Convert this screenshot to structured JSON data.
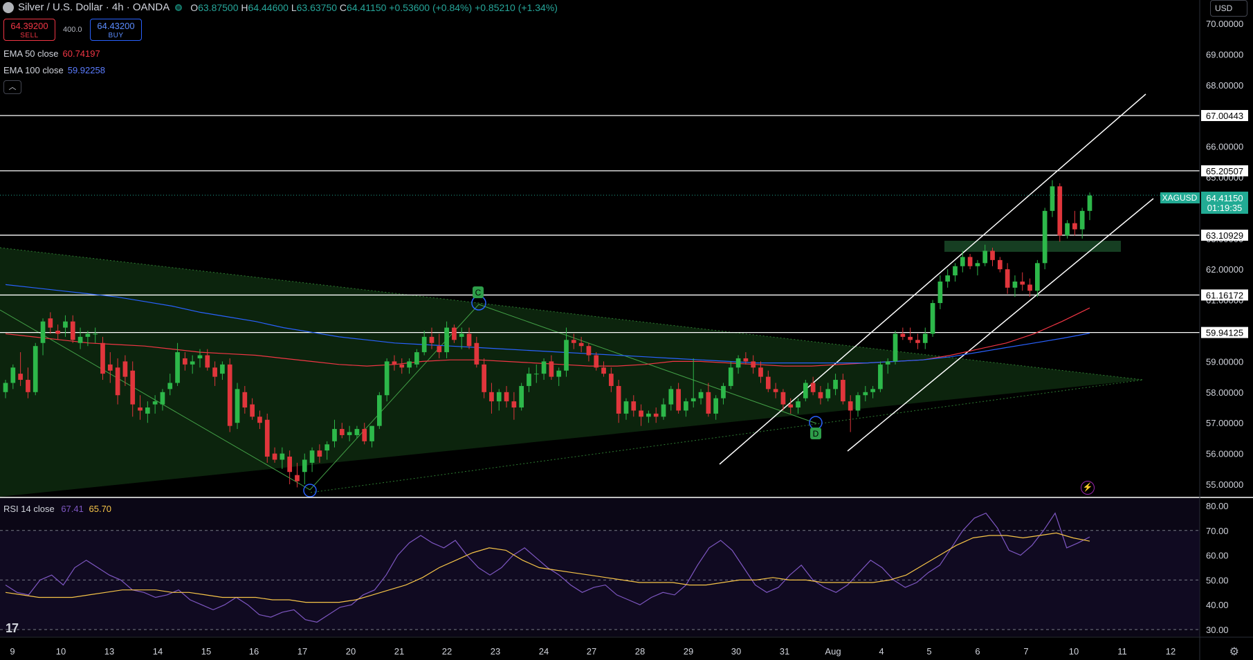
{
  "header": {
    "title": "Silver / U.S. Dollar · 4h · OANDA",
    "open_label": "O",
    "open": "63.87500",
    "high_label": "H",
    "high": "64.44600",
    "low_label": "L",
    "low": "63.63750",
    "close_label": "C",
    "close": "64.41150",
    "change": "+0.53600 (+0.84%)",
    "change2": "+0.85210 (+1.34%)"
  },
  "trade": {
    "sell_price": "64.39200",
    "sell_label": "SELL",
    "spread": "400.0",
    "buy_price": "64.43200",
    "buy_label": "BUY"
  },
  "indicators": {
    "ema50_label": "EMA 50 close",
    "ema50_value": "60.74197",
    "ema50_color": "#f23645",
    "ema100_label": "EMA 100 close",
    "ema100_value": "59.92258",
    "ema100_color": "#2962ff",
    "collapse_icon": "chevron-up-icon"
  },
  "currency": "USD",
  "symbol_tag": {
    "symbol": "XAGUSD",
    "price": "64.41150",
    "countdown": "01:19:35",
    "color": "#22ab94"
  },
  "price_axis": [
    "70.00000",
    "69.00000",
    "68.00000",
    "67.00000",
    "66.00000",
    "65.00000",
    "64.00000",
    "63.00000",
    "62.00000",
    "61.00000",
    "60.00000",
    "59.00000",
    "58.00000",
    "57.00000",
    "56.00000",
    "55.00000"
  ],
  "level_labels": [
    "67.00443",
    "65.20507",
    "63.10929",
    "61.16172",
    "59.94125"
  ],
  "time_axis": [
    "9",
    "10",
    "13",
    "14",
    "15",
    "16",
    "17",
    "20",
    "21",
    "22",
    "23",
    "24",
    "27",
    "28",
    "29",
    "30",
    "31",
    "Aug",
    "4",
    "5",
    "6",
    "7",
    "10",
    "11",
    "12"
  ],
  "pattern_labels": [
    "C",
    "D"
  ],
  "rsi": {
    "label": "RSI 14 close",
    "value": "67.41",
    "value_color": "#7e57c2",
    "ma_value": "65.70",
    "ma_color": "#f7c548",
    "axis": [
      "80.00",
      "70.00",
      "60.00",
      "50.00",
      "40.00",
      "30.00"
    ]
  },
  "chart_data": {
    "type": "candlestick",
    "symbol": "XAGUSD",
    "timeframe": "4h",
    "ylim": [
      54.6,
      70.4
    ],
    "candles": [
      [
        58,
        58.4,
        57.8,
        58.3
      ],
      [
        58.3,
        58.9,
        58.1,
        58.8
      ],
      [
        58.6,
        59.3,
        58.2,
        58.4
      ],
      [
        58.4,
        58.8,
        57.8,
        58.0
      ],
      [
        58.0,
        59.6,
        57.9,
        59.5
      ],
      [
        59.6,
        60.4,
        59.2,
        60.3
      ],
      [
        60.4,
        60.6,
        59.9,
        60.1
      ],
      [
        60.0,
        60.2,
        59.7,
        59.9
      ],
      [
        60.1,
        60.5,
        59.8,
        60.3
      ],
      [
        60.3,
        60.5,
        59.6,
        59.7
      ],
      [
        59.6,
        60.1,
        59.4,
        59.8
      ],
      [
        59.8,
        60.0,
        59.5,
        59.9
      ],
      [
        59.9,
        60.1,
        59.6,
        59.9
      ],
      [
        59.6,
        59.8,
        58.4,
        58.6
      ],
      [
        58.9,
        59.3,
        58.3,
        58.7
      ],
      [
        58.8,
        59.1,
        57.6,
        57.9
      ],
      [
        59.0,
        59.2,
        58.2,
        58.5
      ],
      [
        58.7,
        59.0,
        57.2,
        57.6
      ],
      [
        57.5,
        57.9,
        57.1,
        57.4
      ],
      [
        57.3,
        57.7,
        57.0,
        57.5
      ],
      [
        57.6,
        57.9,
        57.3,
        57.7
      ],
      [
        57.6,
        58.1,
        57.4,
        58.0
      ],
      [
        58.1,
        58.6,
        57.9,
        58.3
      ],
      [
        58.3,
        59.6,
        58.2,
        59.3
      ],
      [
        59.1,
        59.3,
        58.7,
        58.9
      ],
      [
        58.9,
        59.2,
        58.6,
        59.0
      ],
      [
        59.1,
        59.4,
        58.8,
        59.2
      ],
      [
        59.2,
        59.4,
        58.7,
        58.8
      ],
      [
        58.8,
        59.0,
        58.2,
        58.5
      ],
      [
        58.6,
        59.0,
        58.4,
        58.9
      ],
      [
        58.9,
        59.1,
        56.7,
        56.9
      ],
      [
        57.0,
        58.3,
        56.8,
        58.1
      ],
      [
        58.0,
        58.2,
        57.3,
        57.5
      ],
      [
        57.6,
        57.8,
        57.1,
        57.2
      ],
      [
        57.2,
        57.4,
        56.8,
        57.0
      ],
      [
        57.1,
        57.3,
        55.7,
        55.9
      ],
      [
        56.0,
        56.2,
        55.7,
        55.8
      ],
      [
        55.8,
        56.2,
        55.5,
        56.0
      ],
      [
        55.9,
        56.1,
        55.0,
        55.4
      ],
      [
        55.3,
        55.7,
        54.9,
        55.1
      ],
      [
        55.4,
        56.0,
        55.0,
        55.8
      ],
      [
        55.7,
        56.2,
        55.4,
        56.1
      ],
      [
        56.1,
        56.3,
        55.7,
        55.9
      ],
      [
        56.1,
        56.4,
        55.8,
        56.3
      ],
      [
        56.4,
        57.1,
        56.2,
        56.8
      ],
      [
        56.8,
        57.0,
        56.5,
        56.6
      ],
      [
        56.6,
        56.9,
        56.4,
        56.7
      ],
      [
        56.6,
        56.9,
        56.5,
        56.8
      ],
      [
        56.8,
        57.0,
        56.3,
        56.4
      ],
      [
        56.4,
        56.9,
        56.2,
        56.9
      ],
      [
        56.9,
        58.0,
        56.8,
        57.9
      ],
      [
        57.9,
        59.1,
        57.7,
        59.0
      ],
      [
        59.0,
        59.2,
        58.7,
        58.9
      ],
      [
        58.9,
        59.1,
        58.6,
        58.8
      ],
      [
        58.8,
        59.1,
        58.6,
        59.0
      ],
      [
        58.9,
        59.4,
        58.8,
        59.3
      ],
      [
        59.3,
        60.0,
        59.2,
        59.8
      ],
      [
        59.8,
        60.1,
        59.4,
        59.6
      ],
      [
        59.5,
        59.9,
        59.1,
        59.3
      ],
      [
        59.3,
        60.3,
        59.1,
        60.1
      ],
      [
        60.1,
        60.2,
        59.6,
        59.7
      ],
      [
        59.8,
        60.1,
        59.4,
        59.9
      ],
      [
        59.9,
        60.1,
        59.4,
        59.5
      ],
      [
        59.6,
        59.8,
        58.8,
        58.9
      ],
      [
        58.9,
        59.1,
        57.8,
        58.0
      ],
      [
        58.0,
        58.3,
        57.3,
        57.7
      ],
      [
        57.7,
        58.1,
        57.4,
        58.0
      ],
      [
        58.0,
        58.2,
        57.5,
        57.7
      ],
      [
        57.7,
        58.0,
        57.1,
        57.5
      ],
      [
        57.5,
        58.3,
        57.4,
        58.2
      ],
      [
        58.2,
        58.8,
        58.0,
        58.6
      ],
      [
        58.6,
        58.9,
        58.3,
        58.6
      ],
      [
        58.6,
        59.1,
        58.4,
        59.0
      ],
      [
        59.0,
        59.2,
        58.4,
        58.5
      ],
      [
        58.5,
        58.8,
        58.2,
        58.7
      ],
      [
        58.7,
        60.1,
        58.5,
        59.7
      ],
      [
        59.7,
        59.9,
        59.4,
        59.6
      ],
      [
        59.6,
        59.8,
        59.3,
        59.5
      ],
      [
        59.5,
        59.6,
        59.0,
        59.2
      ],
      [
        59.2,
        59.3,
        58.7,
        58.8
      ],
      [
        58.8,
        59.0,
        58.5,
        58.6
      ],
      [
        58.6,
        58.8,
        58.0,
        58.2
      ],
      [
        58.2,
        58.4,
        57.0,
        57.3
      ],
      [
        57.3,
        57.8,
        57.1,
        57.7
      ],
      [
        57.7,
        57.9,
        57.2,
        57.4
      ],
      [
        57.4,
        57.6,
        56.9,
        57.2
      ],
      [
        57.2,
        57.4,
        57.0,
        57.3
      ],
      [
        57.3,
        57.5,
        57.0,
        57.2
      ],
      [
        57.2,
        57.8,
        57.1,
        57.6
      ],
      [
        57.6,
        58.2,
        57.4,
        58.1
      ],
      [
        58.1,
        58.3,
        57.3,
        57.4
      ],
      [
        57.4,
        57.8,
        57.2,
        57.7
      ],
      [
        57.7,
        59.1,
        57.5,
        57.8
      ],
      [
        57.8,
        58.1,
        57.6,
        58.0
      ],
      [
        58.0,
        58.3,
        57.2,
        57.3
      ],
      [
        57.3,
        57.9,
        57.1,
        57.8
      ],
      [
        57.8,
        58.3,
        57.6,
        58.2
      ],
      [
        58.2,
        59.0,
        58.1,
        58.8
      ],
      [
        58.8,
        59.2,
        58.6,
        59.1
      ],
      [
        59.1,
        59.3,
        58.9,
        59.0
      ],
      [
        59.0,
        59.2,
        58.6,
        58.8
      ],
      [
        58.8,
        59.0,
        58.3,
        58.5
      ],
      [
        58.5,
        58.7,
        58.0,
        58.1
      ],
      [
        58.1,
        58.3,
        57.8,
        58.0
      ],
      [
        58.0,
        58.1,
        57.4,
        57.6
      ],
      [
        57.6,
        57.8,
        57.3,
        57.5
      ],
      [
        57.5,
        57.8,
        57.3,
        57.7
      ],
      [
        57.8,
        58.4,
        57.7,
        58.3
      ],
      [
        58.3,
        58.5,
        57.9,
        58.0
      ],
      [
        58.0,
        58.2,
        57.6,
        57.8
      ],
      [
        57.8,
        58.3,
        57.7,
        58.1
      ],
      [
        58.1,
        58.6,
        57.9,
        58.4
      ],
      [
        58.4,
        58.6,
        57.6,
        57.7
      ],
      [
        57.7,
        57.9,
        56.7,
        57.4
      ],
      [
        57.4,
        58.0,
        57.2,
        57.9
      ],
      [
        57.9,
        58.2,
        57.7,
        58.0
      ],
      [
        58.0,
        58.2,
        57.8,
        58.1
      ],
      [
        58.1,
        59.0,
        58.0,
        58.9
      ],
      [
        58.9,
        59.1,
        58.6,
        59.0
      ],
      [
        59.0,
        60.0,
        58.9,
        59.9
      ],
      [
        59.9,
        60.1,
        59.7,
        59.8
      ],
      [
        59.8,
        60.1,
        59.6,
        59.7
      ],
      [
        59.7,
        59.9,
        59.4,
        59.6
      ],
      [
        59.6,
        60.1,
        59.4,
        59.9
      ],
      [
        59.9,
        61.0,
        59.8,
        60.9
      ],
      [
        60.9,
        61.8,
        60.7,
        61.6
      ],
      [
        61.6,
        62.0,
        61.4,
        61.8
      ],
      [
        61.8,
        62.2,
        61.6,
        62.1
      ],
      [
        62.1,
        62.6,
        61.9,
        62.4
      ],
      [
        62.4,
        62.5,
        62.0,
        62.1
      ],
      [
        62.1,
        62.3,
        61.8,
        62.2
      ],
      [
        62.2,
        62.8,
        62.1,
        62.6
      ],
      [
        62.6,
        62.7,
        62.1,
        62.3
      ],
      [
        62.3,
        62.4,
        61.9,
        62.0
      ],
      [
        62.0,
        62.2,
        61.2,
        61.4
      ],
      [
        61.4,
        61.8,
        61.1,
        61.6
      ],
      [
        61.6,
        61.9,
        61.3,
        61.5
      ],
      [
        61.5,
        61.7,
        61.1,
        61.3
      ],
      [
        61.3,
        62.3,
        61.1,
        62.2
      ],
      [
        62.2,
        64.0,
        62.0,
        63.9
      ],
      [
        63.9,
        64.9,
        63.7,
        64.7
      ],
      [
        64.7,
        64.8,
        62.9,
        63.1
      ],
      [
        63.1,
        63.6,
        63.0,
        63.5
      ],
      [
        63.5,
        63.9,
        63.1,
        63.3
      ],
      [
        63.3,
        64.0,
        63.0,
        63.9
      ],
      [
        63.9,
        64.5,
        63.6,
        64.4
      ]
    ],
    "horizontal_levels": [
      67.00443,
      65.20507,
      63.10929,
      61.16172,
      59.94125
    ],
    "last_price": 64.4115,
    "series": [
      {
        "name": "EMA 50 close",
        "color": "#f23645",
        "values": [
          59.9,
          59.8,
          59.7,
          59.6,
          59.55,
          59.5,
          59.4,
          59.3,
          59.25,
          59.2,
          59.1,
          59.0,
          58.9,
          58.85,
          58.9,
          59.0,
          59.05,
          59.05,
          59.0,
          58.95,
          58.9,
          58.85,
          58.85,
          58.9,
          59.0,
          59.0,
          58.95,
          58.9,
          58.85,
          58.85,
          58.9,
          58.95,
          59.0,
          59.05,
          59.2,
          59.4,
          59.6,
          59.9,
          60.3,
          60.74
        ]
      },
      {
        "name": "EMA 100 close",
        "color": "#2962ff",
        "values": [
          61.5,
          61.4,
          61.3,
          61.2,
          61.1,
          60.95,
          60.8,
          60.6,
          60.45,
          60.3,
          60.1,
          59.95,
          59.8,
          59.7,
          59.6,
          59.55,
          59.5,
          59.45,
          59.4,
          59.35,
          59.3,
          59.25,
          59.2,
          59.15,
          59.1,
          59.05,
          59.0,
          58.95,
          58.95,
          58.95,
          58.95,
          58.95,
          59.0,
          59.05,
          59.15,
          59.3,
          59.45,
          59.6,
          59.75,
          59.92
        ]
      }
    ],
    "rsi": {
      "name": "RSI 14 close",
      "color": "#7e57c2",
      "ylim": [
        27,
        82
      ],
      "values": [
        48,
        45,
        44,
        50,
        52,
        48,
        55,
        58,
        55,
        52,
        50,
        46,
        45,
        43,
        44,
        46,
        42,
        40,
        38,
        40,
        43,
        40,
        36,
        35,
        37,
        38,
        34,
        33,
        36,
        39,
        40,
        44,
        46,
        52,
        60,
        65,
        68,
        65,
        63,
        66,
        60,
        55,
        52,
        55,
        60,
        63,
        59,
        55,
        52,
        48,
        45,
        47,
        48,
        44,
        42,
        40,
        43,
        45,
        44,
        48,
        56,
        63,
        66,
        62,
        55,
        48,
        45,
        47,
        52,
        56,
        50,
        47,
        45,
        48,
        53,
        58,
        55,
        50,
        47,
        49,
        53,
        56,
        63,
        70,
        75,
        77,
        71,
        62,
        60,
        64,
        70,
        77,
        63,
        65,
        67.4
      ],
      "ma_name": "RSI MA",
      "ma_color": "#f7c548",
      "ma_values": [
        45,
        44,
        43,
        43,
        43,
        44,
        45,
        46,
        46,
        46,
        45,
        45,
        44,
        43,
        43,
        43,
        42,
        42,
        41,
        41,
        41,
        42,
        44,
        46,
        48,
        51,
        55,
        58,
        61,
        63,
        62,
        58,
        55,
        54,
        53,
        52,
        51,
        50,
        49,
        49,
        49,
        48,
        48,
        49,
        50,
        50,
        51,
        50,
        50,
        49,
        49,
        49,
        49,
        50,
        52,
        56,
        60,
        64,
        67,
        68,
        68,
        67,
        68,
        69,
        67,
        65.7
      ]
    }
  }
}
